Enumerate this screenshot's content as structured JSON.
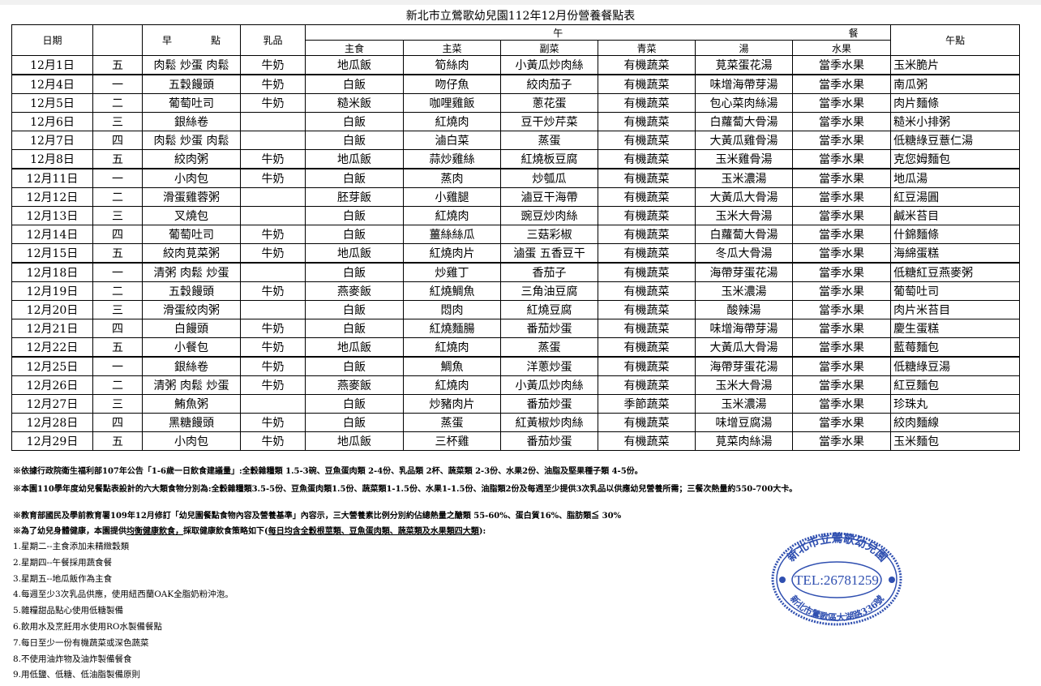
{
  "title": "新北市立鶯歌幼兒園112年12月份營養餐點表",
  "header": {
    "date": "日期",
    "breakfast": "早　　　　點",
    "dairy": "乳品",
    "lunch_left": "午",
    "lunch_right": "餐",
    "staple": "主食",
    "main": "主菜",
    "side": "副菜",
    "greens": "青菜",
    "soup": "湯",
    "fruit": "水果",
    "snack": "午點"
  },
  "rows": [
    [
      "12月1日",
      "五",
      "肉鬆 炒蛋 肉鬆",
      "牛奶",
      "地瓜飯",
      "筍絲肉",
      "小黃瓜炒肉絲",
      "有機蔬菜",
      "莧菜蛋花湯",
      "當季水果",
      "玉米脆片"
    ],
    [
      "12月4日",
      "一",
      "五穀饅頭",
      "牛奶",
      "白飯",
      "吻仔魚",
      "絞肉茄子",
      "有機蔬菜",
      "味增海帶芽湯",
      "當季水果",
      "南瓜粥"
    ],
    [
      "12月5日",
      "二",
      "葡萄吐司",
      "牛奶",
      "糙米飯",
      "咖哩雞飯",
      "蔥花蛋",
      "有機蔬菜",
      "包心菜肉絲湯",
      "當季水果",
      "肉片麵條"
    ],
    [
      "12月6日",
      "三",
      "銀絲卷",
      "",
      "白飯",
      "紅燒肉",
      "豆干炒芹菜",
      "有機蔬菜",
      "白蘿蔔大骨湯",
      "當季水果",
      "糙米小排粥"
    ],
    [
      "12月7日",
      "四",
      "肉鬆 炒蛋 肉鬆",
      "",
      "白飯",
      "滷白菜",
      "蒸蛋",
      "有機蔬菜",
      "大黃瓜雞骨湯",
      "當季水果",
      "低糖綠豆薏仁湯"
    ],
    [
      "12月8日",
      "五",
      "絞肉粥",
      "牛奶",
      "地瓜飯",
      "蒜炒雞絲",
      "紅燒板豆腐",
      "有機蔬菜",
      "玉米雞骨湯",
      "當季水果",
      "克您姆麵包"
    ],
    [
      "12月11日",
      "一",
      "小肉包",
      "牛奶",
      "白飯",
      "蒸肉",
      "炒瓠瓜",
      "有機蔬菜",
      "玉米濃湯",
      "當季水果",
      "地瓜湯"
    ],
    [
      "12月12日",
      "二",
      "滑蛋雞蓉粥",
      "",
      "胚芽飯",
      "小雞腿",
      "滷豆干海帶",
      "有機蔬菜",
      "大黃瓜大骨湯",
      "當季水果",
      "紅豆湯圓"
    ],
    [
      "12月13日",
      "三",
      "叉燒包",
      "",
      "白飯",
      "紅燒肉",
      "豌豆炒肉絲",
      "有機蔬菜",
      "玉米大骨湯",
      "當季水果",
      "鹹米苔目"
    ],
    [
      "12月14日",
      "四",
      "葡萄吐司",
      "牛奶",
      "白飯",
      "薑絲絲瓜",
      "三菇彩椒",
      "有機蔬菜",
      "白蘿蔔大骨湯",
      "當季水果",
      "什錦麵條"
    ],
    [
      "12月15日",
      "五",
      "絞肉莧菜粥",
      "牛奶",
      "地瓜飯",
      "紅燒肉片",
      "滷蛋 五香豆干",
      "有機蔬菜",
      "冬瓜大骨湯",
      "當季水果",
      "海綿蛋糕"
    ],
    [
      "12月18日",
      "一",
      "清粥 肉鬆 炒蛋",
      "",
      "白飯",
      "炒雞丁",
      "香茄子",
      "有機蔬菜",
      "海帶芽蛋花湯",
      "當季水果",
      "低糖紅豆燕麥粥"
    ],
    [
      "12月19日",
      "二",
      "五穀饅頭",
      "牛奶",
      "燕麥飯",
      "紅燒鯛魚",
      "三角油豆腐",
      "有機蔬菜",
      "玉米濃湯",
      "當季水果",
      "葡萄吐司"
    ],
    [
      "12月20日",
      "三",
      "滑蛋絞肉粥",
      "",
      "白飯",
      "悶肉",
      "紅燒豆腐",
      "有機蔬菜",
      "酸辣湯",
      "當季水果",
      "肉片米苔目"
    ],
    [
      "12月21日",
      "四",
      "白饅頭",
      "牛奶",
      "白飯",
      "紅燒麵腸",
      "番茄炒蛋",
      "有機蔬菜",
      "味增海帶芽湯",
      "當季水果",
      "慶生蛋糕"
    ],
    [
      "12月22日",
      "五",
      "小餐包",
      "牛奶",
      "地瓜飯",
      "紅燒肉",
      "蒸蛋",
      "有機蔬菜",
      "大黃瓜大骨湯",
      "當季水果",
      "藍莓麵包"
    ],
    [
      "12月25日",
      "一",
      "銀絲卷",
      "牛奶",
      "白飯",
      "鯛魚",
      "洋蔥炒蛋",
      "有機蔬菜",
      "海帶芽蛋花湯",
      "當季水果",
      "低糖綠豆湯"
    ],
    [
      "12月26日",
      "二",
      "清粥 肉鬆 炒蛋",
      "牛奶",
      "燕麥飯",
      "紅燒肉",
      "小黃瓜炒肉絲",
      "有機蔬菜",
      "玉米大骨湯",
      "當季水果",
      "紅豆麵包"
    ],
    [
      "12月27日",
      "三",
      "鮪魚粥",
      "",
      "白飯",
      "炒豬肉片",
      "番茄炒蛋",
      "季節蔬菜",
      "玉米濃湯",
      "當季水果",
      "珍珠丸"
    ],
    [
      "12月28日",
      "四",
      "黑糖饅頭",
      "牛奶",
      "白飯",
      "蒸蛋",
      "紅黃椒炒肉絲",
      "有機蔬菜",
      "味增豆腐湯",
      "當季水果",
      "絞肉麵線"
    ],
    [
      "12月29日",
      "五",
      "小肉包",
      "牛奶",
      "地瓜飯",
      "三杯雞",
      "番茄炒蛋",
      "有機蔬菜",
      "莧菜肉絲湯",
      "當季水果",
      "玉米麵包"
    ]
  ],
  "notes": {
    "n1": "※依據行政院衛生福利部107年公告「1-6歲一日飲食建議量」:全穀雜糧類 1.5-3碗、豆魚蛋肉類 2-4份、乳品類 2杯、蔬菜類 2-3份、水果2份、油脂及堅果種子類 4-5份。",
    "n2": "※本園110學年度幼兒餐點表設計的六大類食物分別為:全穀雜糧類3.5-5份、豆魚蛋肉類1.5份、蔬菜類1-1.5份、水果1-1.5份、油脂類2份及每週至少提供3次乳品以供應幼兒營養所需；三餐次熱量約550-700大卡。",
    "n3": "※教育部國民及學前教育署109年12月修訂「幼兒園餐點食物內容及營養基準」內容示，三大營養素比例分別約佔總熱量之醣類 55-60%、蛋白質16%、脂肪類≦ 30%",
    "n4_a": "※為了幼兒身體健康，本園提供",
    "n4_b": "均衡健康飲食，",
    "n4_c": "採取健康飲食策略如下(",
    "n4_d": "每日均含全穀根莖類、豆魚蛋肉類、蔬菜類及水果類四大類",
    "n4_e": "):"
  },
  "policies": [
    "1.星期二--主食添加未精緻穀類",
    "2.星期四--午餐採用蔬食餐",
    "3.星期五--地瓜飯作為主食",
    "4.每週至少3次乳品供應，使用紐西蘭OAK全脂奶粉沖泡。",
    "5.雜糧甜品點心使用低糖製備",
    "6.飲用水及烹飪用水使用RO水製備餐點",
    "7.每日至少一份有機蔬菜或深色蔬菜",
    "8.不使用油炸物及油炸製備餐食",
    "9.用低鹽、低糖、低油脂製備原則"
  ],
  "stamp": {
    "name": "新北市立鶯歌幼兒園",
    "tel": "TEL:26781259",
    "address": "新北市鶯歌區大湖路336號",
    "color": "#2f4fb0"
  }
}
